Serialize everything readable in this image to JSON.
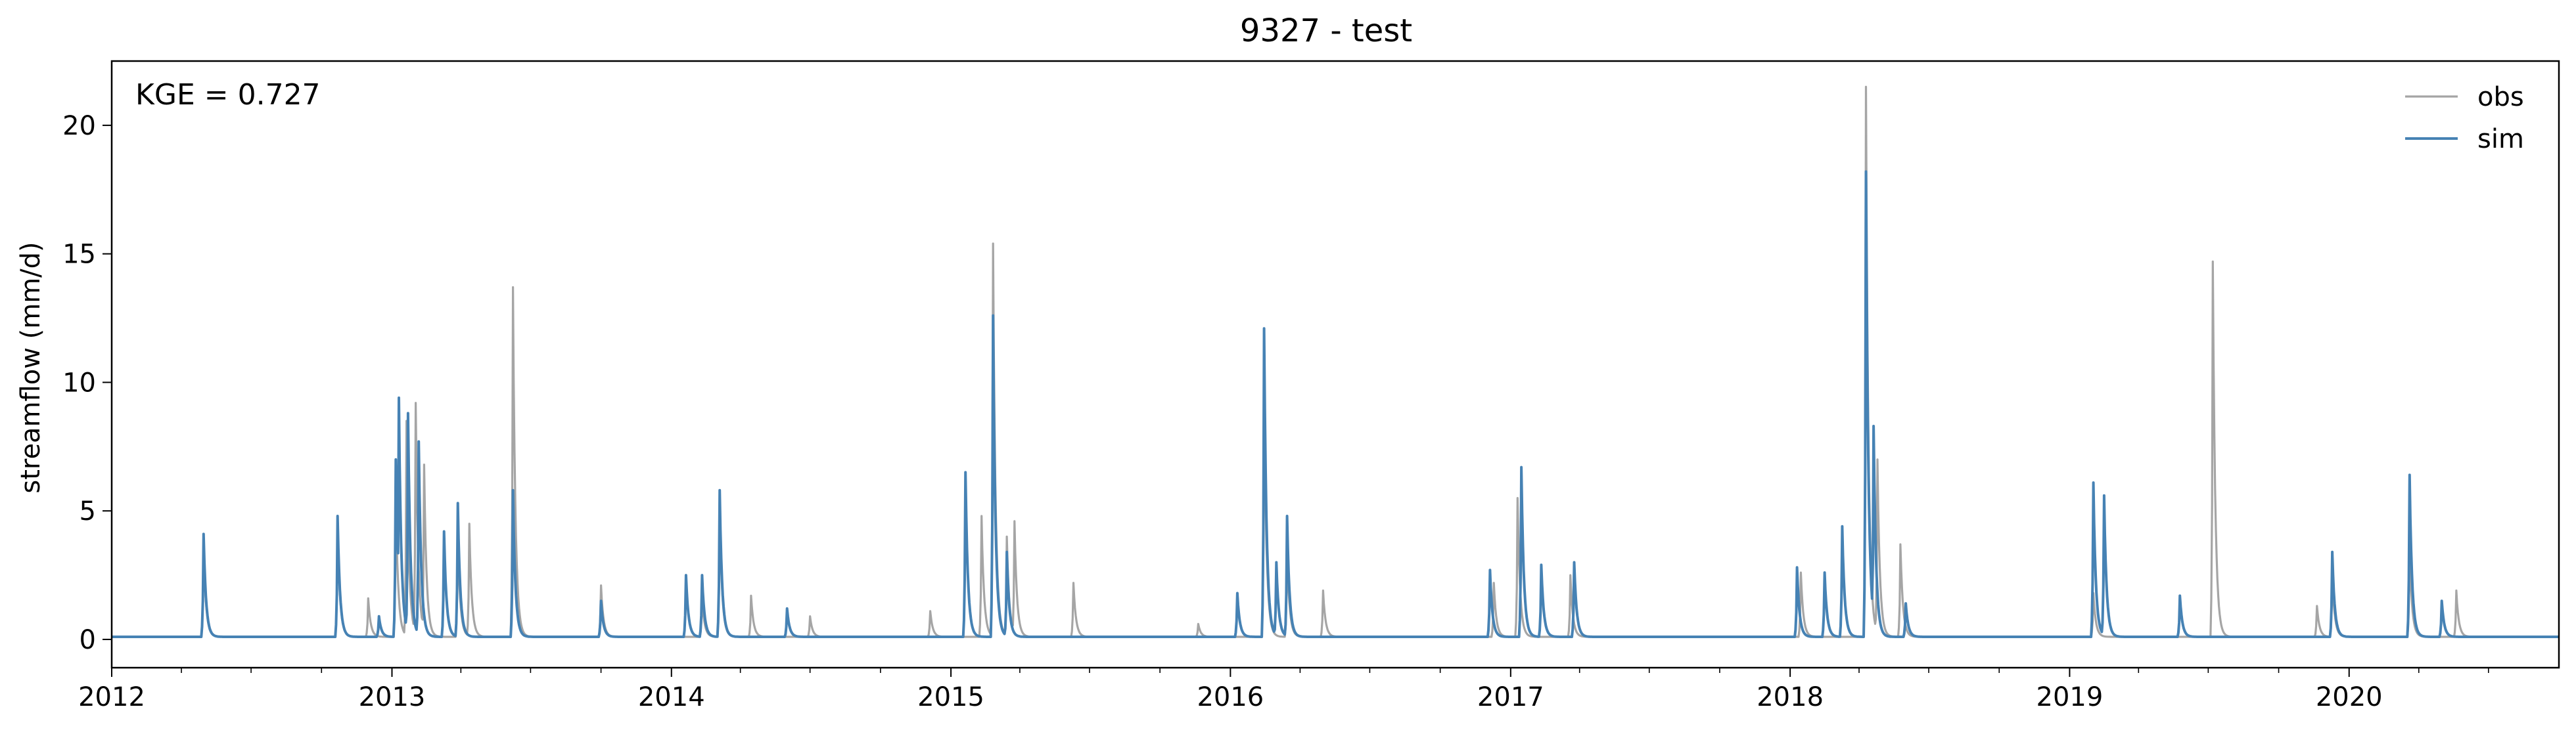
{
  "chart_data": {
    "type": "line",
    "title": "9327 - test",
    "xlabel": "",
    "ylabel": "streamflow (mm/d)",
    "annotation": "KGE = 0.727",
    "xlim": [
      "2012-01-01",
      "2020-10-01"
    ],
    "ylim": [
      -1.1,
      22.5
    ],
    "x_ticks": [
      "2012",
      "2013",
      "2014",
      "2015",
      "2016",
      "2017",
      "2018",
      "2019",
      "2020"
    ],
    "y_ticks": [
      "0",
      "5",
      "10",
      "15",
      "20"
    ],
    "legend": {
      "placement": "top-right",
      "frame": false
    },
    "grid": false,
    "baseline": 0.1,
    "series": [
      {
        "name": "obs",
        "color": "#a5a5a5",
        "peaks": [
          {
            "date": "2012-04-30",
            "value": 3.6
          },
          {
            "date": "2012-10-22",
            "value": 4.5
          },
          {
            "date": "2012-12-01",
            "value": 1.6
          },
          {
            "date": "2013-01-06",
            "value": 5.5
          },
          {
            "date": "2013-01-20",
            "value": 8.5
          },
          {
            "date": "2013-02-01",
            "value": 9.2
          },
          {
            "date": "2013-02-12",
            "value": 6.8
          },
          {
            "date": "2013-03-28",
            "value": 4.0
          },
          {
            "date": "2013-04-12",
            "value": 4.5
          },
          {
            "date": "2013-06-08",
            "value": 13.7
          },
          {
            "date": "2013-10-01",
            "value": 2.1
          },
          {
            "date": "2014-02-10",
            "value": 1.6
          },
          {
            "date": "2014-03-05",
            "value": 5.0
          },
          {
            "date": "2014-04-15",
            "value": 1.7
          },
          {
            "date": "2014-07-01",
            "value": 0.9
          },
          {
            "date": "2014-12-05",
            "value": 1.1
          },
          {
            "date": "2015-02-10",
            "value": 4.8
          },
          {
            "date": "2015-02-25",
            "value": 15.4
          },
          {
            "date": "2015-03-15",
            "value": 4.0
          },
          {
            "date": "2015-03-25",
            "value": 4.6
          },
          {
            "date": "2015-06-10",
            "value": 2.2
          },
          {
            "date": "2015-11-20",
            "value": 0.6
          },
          {
            "date": "2016-02-14",
            "value": 9.5
          },
          {
            "date": "2016-03-15",
            "value": 3.5
          },
          {
            "date": "2016-05-01",
            "value": 1.9
          },
          {
            "date": "2016-12-10",
            "value": 2.2
          },
          {
            "date": "2017-01-10",
            "value": 5.5
          },
          {
            "date": "2017-03-20",
            "value": 2.5
          },
          {
            "date": "2018-01-15",
            "value": 2.6
          },
          {
            "date": "2018-04-10",
            "value": 21.5
          },
          {
            "date": "2018-04-25",
            "value": 7.0
          },
          {
            "date": "2018-05-25",
            "value": 3.7
          },
          {
            "date": "2019-02-01",
            "value": 1.8
          },
          {
            "date": "2019-07-07",
            "value": 14.7
          },
          {
            "date": "2019-11-20",
            "value": 1.3
          },
          {
            "date": "2019-12-10",
            "value": 2.5
          },
          {
            "date": "2020-03-20",
            "value": 3.5
          },
          {
            "date": "2020-05-20",
            "value": 1.9
          }
        ]
      },
      {
        "name": "sim",
        "color": "#4682b4",
        "peaks": [
          {
            "date": "2012-04-30",
            "value": 4.1
          },
          {
            "date": "2012-10-22",
            "value": 4.8
          },
          {
            "date": "2012-12-15",
            "value": 0.9
          },
          {
            "date": "2013-01-06",
            "value": 7.0
          },
          {
            "date": "2013-01-10",
            "value": 9.4
          },
          {
            "date": "2013-01-22",
            "value": 8.8
          },
          {
            "date": "2013-02-05",
            "value": 7.7
          },
          {
            "date": "2013-03-10",
            "value": 4.2
          },
          {
            "date": "2013-03-28",
            "value": 5.3
          },
          {
            "date": "2013-06-08",
            "value": 5.8
          },
          {
            "date": "2013-10-01",
            "value": 1.5
          },
          {
            "date": "2014-01-20",
            "value": 2.5
          },
          {
            "date": "2014-02-10",
            "value": 2.5
          },
          {
            "date": "2014-03-05",
            "value": 5.8
          },
          {
            "date": "2014-06-01",
            "value": 1.2
          },
          {
            "date": "2015-01-20",
            "value": 6.5
          },
          {
            "date": "2015-02-25",
            "value": 12.6
          },
          {
            "date": "2015-03-15",
            "value": 3.4
          },
          {
            "date": "2016-01-10",
            "value": 1.8
          },
          {
            "date": "2016-02-14",
            "value": 12.1
          },
          {
            "date": "2016-03-01",
            "value": 3.0
          },
          {
            "date": "2016-03-15",
            "value": 4.8
          },
          {
            "date": "2016-12-05",
            "value": 2.7
          },
          {
            "date": "2017-01-15",
            "value": 6.7
          },
          {
            "date": "2017-02-10",
            "value": 2.9
          },
          {
            "date": "2017-03-25",
            "value": 3.0
          },
          {
            "date": "2018-01-10",
            "value": 2.8
          },
          {
            "date": "2018-02-15",
            "value": 2.6
          },
          {
            "date": "2018-03-10",
            "value": 4.4
          },
          {
            "date": "2018-04-10",
            "value": 18.2
          },
          {
            "date": "2018-04-20",
            "value": 8.3
          },
          {
            "date": "2018-06-01",
            "value": 1.4
          },
          {
            "date": "2019-02-01",
            "value": 6.1
          },
          {
            "date": "2019-02-15",
            "value": 5.6
          },
          {
            "date": "2019-05-25",
            "value": 1.7
          },
          {
            "date": "2019-12-10",
            "value": 3.4
          },
          {
            "date": "2020-03-20",
            "value": 6.4
          },
          {
            "date": "2020-05-01",
            "value": 1.5
          }
        ]
      }
    ]
  }
}
